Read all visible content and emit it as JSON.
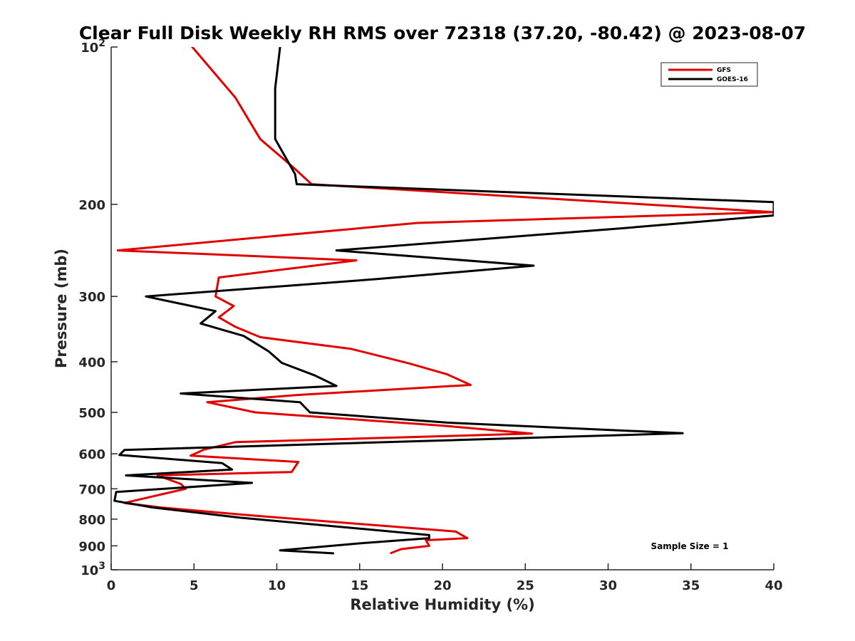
{
  "chart_data": {
    "type": "line",
    "title": "Clear Full Disk Weekly RH RMS over 72318 (37.20, -80.42) @ 2023-08-07",
    "xlabel": "Relative Humidity (%)",
    "ylabel": "Pressure (mb)",
    "xlim": [
      0,
      40
    ],
    "ylim": [
      100,
      1000
    ],
    "y_scale": "log",
    "y_reversed": true,
    "xticks": [
      0,
      5,
      10,
      15,
      20,
      25,
      30,
      35,
      40
    ],
    "yticks": [
      {
        "value": 100,
        "label": "10",
        "sup": "2"
      },
      {
        "value": 200,
        "label": "200",
        "sup": ""
      },
      {
        "value": 300,
        "label": "300",
        "sup": ""
      },
      {
        "value": 400,
        "label": "400",
        "sup": ""
      },
      {
        "value": 500,
        "label": "500",
        "sup": ""
      },
      {
        "value": 600,
        "label": "600",
        "sup": ""
      },
      {
        "value": 700,
        "label": "700",
        "sup": ""
      },
      {
        "value": 800,
        "label": "800",
        "sup": ""
      },
      {
        "value": 900,
        "label": "900",
        "sup": ""
      },
      {
        "value": 1000,
        "label": "10",
        "sup": "3"
      }
    ],
    "grid": false,
    "legend_position": "top-right",
    "annotation": "Sample Size = 1",
    "series": [
      {
        "name": "GFS",
        "color": "#e00000",
        "points": [
          [
            4.9,
            100
          ],
          [
            7.5,
            125
          ],
          [
            9.0,
            150
          ],
          [
            11.0,
            170
          ],
          [
            12.1,
            183
          ],
          [
            40.0,
            207
          ],
          [
            18.5,
            217
          ],
          [
            0.4,
            245
          ],
          [
            14.8,
            256
          ],
          [
            6.5,
            276
          ],
          [
            6.3,
            300
          ],
          [
            7.4,
            313
          ],
          [
            6.5,
            329
          ],
          [
            7.5,
            343
          ],
          [
            9.0,
            359
          ],
          [
            14.5,
            378
          ],
          [
            18.0,
            403
          ],
          [
            20.3,
            423
          ],
          [
            21.7,
            443
          ],
          [
            11.3,
            463
          ],
          [
            5.8,
            478
          ],
          [
            8.7,
            500
          ],
          [
            20.0,
            530
          ],
          [
            25.4,
            549
          ],
          [
            7.5,
            570
          ],
          [
            5.6,
            589
          ],
          [
            4.8,
            605
          ],
          [
            11.3,
            622
          ],
          [
            10.9,
            650
          ],
          [
            2.8,
            660
          ],
          [
            4.2,
            685
          ],
          [
            4.5,
            700
          ],
          [
            0.8,
            745
          ],
          [
            3.0,
            760
          ],
          [
            8.0,
            785
          ],
          [
            20.8,
            845
          ],
          [
            21.5,
            870
          ],
          [
            19.0,
            878
          ],
          [
            19.2,
            900
          ],
          [
            17.5,
            913
          ],
          [
            16.9,
            929
          ]
        ]
      },
      {
        "name": "GOES-16",
        "color": "#000000",
        "points": [
          [
            10.2,
            100
          ],
          [
            9.9,
            120
          ],
          [
            9.9,
            150
          ],
          [
            11.1,
            175
          ],
          [
            11.2,
            183
          ],
          [
            40.0,
            198
          ],
          [
            40.0,
            210
          ],
          [
            31.0,
            222
          ],
          [
            13.6,
            245
          ],
          [
            25.5,
            262
          ],
          [
            16.0,
            278
          ],
          [
            2.1,
            300
          ],
          [
            6.3,
            320
          ],
          [
            5.4,
            338
          ],
          [
            8.0,
            357
          ],
          [
            9.5,
            382
          ],
          [
            10.3,
            402
          ],
          [
            12.3,
            425
          ],
          [
            13.6,
            445
          ],
          [
            4.2,
            460
          ],
          [
            11.4,
            478
          ],
          [
            12.0,
            500
          ],
          [
            20.3,
            523
          ],
          [
            34.5,
            548
          ],
          [
            0.8,
            590
          ],
          [
            0.5,
            603
          ],
          [
            6.7,
            625
          ],
          [
            7.3,
            643
          ],
          [
            0.9,
            660
          ],
          [
            8.5,
            682
          ],
          [
            0.3,
            710
          ],
          [
            0.2,
            738
          ],
          [
            2.5,
            760
          ],
          [
            7.8,
            795
          ],
          [
            19.2,
            858
          ],
          [
            19.2,
            870
          ],
          [
            15.0,
            890
          ],
          [
            10.2,
            918
          ],
          [
            13.4,
            930
          ]
        ]
      }
    ]
  }
}
